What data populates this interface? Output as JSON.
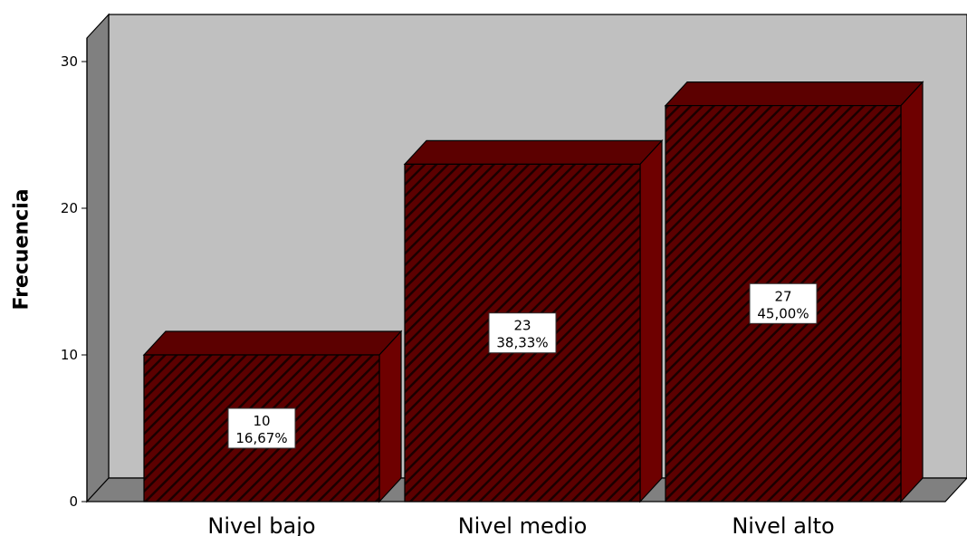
{
  "chart_data": {
    "type": "bar",
    "categories": [
      "Nivel bajo",
      "Nivel medio",
      "Nivel alto"
    ],
    "values": [
      10,
      23,
      27
    ],
    "percent_labels": [
      "16,67%",
      "38,33%",
      "45,00%"
    ],
    "ylabel": "Frecuencia",
    "yticks": [
      0,
      10,
      20,
      30
    ],
    "ylim": [
      0,
      30
    ],
    "grid": false,
    "colors": {
      "bar_front": "#5c0000",
      "bar_side": "#6e0000",
      "bar_hatch": "#1a0000",
      "wall": "#c0c0c0",
      "wall_side": "#808080",
      "floor": "#808080"
    }
  }
}
